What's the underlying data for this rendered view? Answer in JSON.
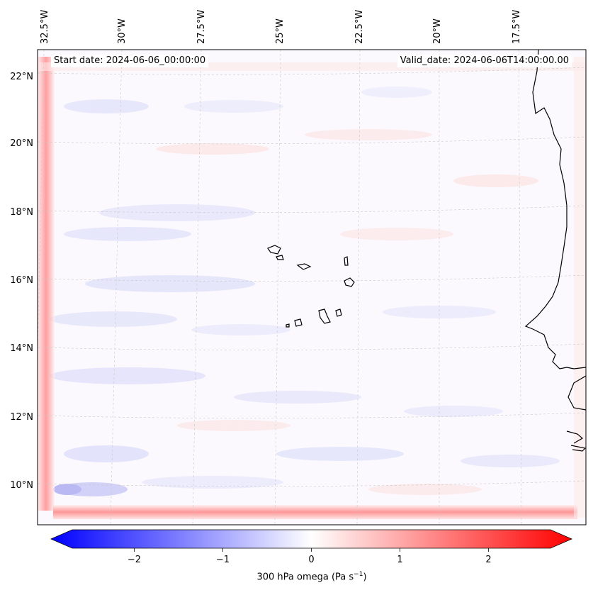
{
  "map": {
    "start_date": "Start date: 2024-06-06_00:00:00",
    "valid_date": "Valid_date: 2024-06-06T14:00:00.00",
    "variable": "300 hPa omega",
    "unit_prefix": "(Pa s",
    "unit_exponent": "−1",
    "unit_suffix": ")",
    "region": "Cape Verde / West African coast",
    "gridlines": true,
    "gridline_style": "dashed light gray"
  },
  "lon_labels": [
    "32.5°W",
    "30°W",
    "27.5°W",
    "25°W",
    "22.5°W",
    "20°W",
    "17.5°W"
  ],
  "lat_labels": [
    "22°N",
    "20°N",
    "18°N",
    "16°N",
    "14°N",
    "12°N",
    "10°N"
  ],
  "colorbar": {
    "colormap": "bwr",
    "range": [
      -2.7,
      2.7
    ],
    "extend": "both",
    "tick_labels": [
      "−2",
      "−1",
      "0",
      "1",
      "2"
    ],
    "ticks": [
      -2,
      -1,
      0,
      1,
      2
    ],
    "colors": {
      "negative": "#0000ff",
      "zero": "#ffffff",
      "positive": "#ff0000"
    }
  }
}
